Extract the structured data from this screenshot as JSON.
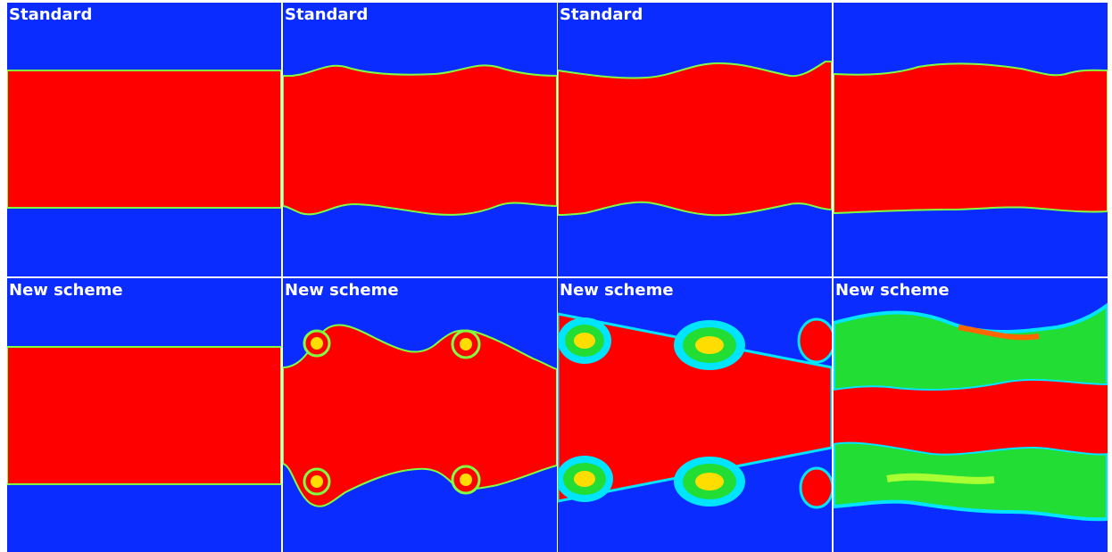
{
  "rows": [
    {
      "labels": [
        "Standard",
        "Standard",
        "Standard",
        ""
      ]
    },
    {
      "labels": [
        "New scheme",
        "New scheme",
        "New scheme",
        "New scheme"
      ]
    }
  ],
  "colors": {
    "background": "#0a2cff",
    "band": "#ff0000",
    "mixed": "#22dd33",
    "edge": "#00e5ff"
  }
}
